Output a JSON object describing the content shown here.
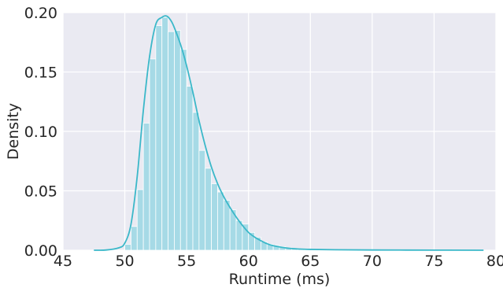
{
  "chart_data": {
    "type": "bar",
    "subtype": "histogram with KDE curve",
    "xlabel": "Runtime (ms)",
    "ylabel": "Density",
    "xlim": [
      45,
      80
    ],
    "ylim": [
      0,
      0.2
    ],
    "x_ticks": [
      "45",
      "50",
      "55",
      "60",
      "65",
      "70",
      "75",
      "80"
    ],
    "y_ticks": [
      "0.00",
      "0.05",
      "0.10",
      "0.15",
      "0.20"
    ],
    "grid": true,
    "style": "seaborn darkgrid",
    "colors": {
      "plot_background": "#EAEAF2",
      "grid": "#FFFFFF",
      "bars": "#A6DAE6",
      "kde_line": "#3BB8C9",
      "text": "#262626"
    },
    "histogram": {
      "bin_width": 0.5,
      "bins": [
        {
          "x0": 50.0,
          "value": 0.005
        },
        {
          "x0": 50.5,
          "value": 0.02
        },
        {
          "x0": 51.0,
          "value": 0.051
        },
        {
          "x0": 51.5,
          "value": 0.107
        },
        {
          "x0": 52.0,
          "value": 0.161
        },
        {
          "x0": 52.5,
          "value": 0.189
        },
        {
          "x0": 53.0,
          "value": 0.196
        },
        {
          "x0": 53.5,
          "value": 0.184
        },
        {
          "x0": 54.0,
          "value": 0.185
        },
        {
          "x0": 54.5,
          "value": 0.169
        },
        {
          "x0": 55.0,
          "value": 0.138
        },
        {
          "x0": 55.5,
          "value": 0.116
        },
        {
          "x0": 56.0,
          "value": 0.084
        },
        {
          "x0": 56.5,
          "value": 0.069
        },
        {
          "x0": 57.0,
          "value": 0.056
        },
        {
          "x0": 57.5,
          "value": 0.049
        },
        {
          "x0": 58.0,
          "value": 0.042
        },
        {
          "x0": 58.5,
          "value": 0.034
        },
        {
          "x0": 59.0,
          "value": 0.025
        },
        {
          "x0": 59.5,
          "value": 0.022
        },
        {
          "x0": 60.0,
          "value": 0.015
        },
        {
          "x0": 60.5,
          "value": 0.011
        },
        {
          "x0": 61.0,
          "value": 0.007
        },
        {
          "x0": 61.5,
          "value": 0.005
        },
        {
          "x0": 62.0,
          "value": 0.004
        },
        {
          "x0": 62.5,
          "value": 0.003
        },
        {
          "x0": 63.0,
          "value": 0.002
        },
        {
          "x0": 63.5,
          "value": 0.0015
        },
        {
          "x0": 64.0,
          "value": 0.001
        }
      ]
    },
    "kde": {
      "x": [
        47.5,
        48.5,
        49.5,
        50.0,
        50.5,
        51.0,
        51.5,
        52.0,
        52.5,
        53.0,
        53.4,
        53.8,
        54.2,
        54.6,
        55.0,
        55.5,
        56.0,
        56.5,
        57.0,
        57.5,
        58.0,
        58.5,
        59.0,
        59.5,
        60.0,
        60.5,
        61.0,
        61.5,
        62.0,
        63.0,
        64.0,
        65.0,
        67.0,
        70.0,
        75.0,
        79.0
      ],
      "y": [
        0.0,
        0.0002,
        0.002,
        0.006,
        0.022,
        0.062,
        0.118,
        0.163,
        0.19,
        0.196,
        0.197,
        0.192,
        0.182,
        0.17,
        0.155,
        0.133,
        0.109,
        0.088,
        0.07,
        0.056,
        0.045,
        0.036,
        0.028,
        0.021,
        0.015,
        0.011,
        0.008,
        0.0055,
        0.0038,
        0.002,
        0.0011,
        0.0007,
        0.0004,
        0.0002,
        0.0001,
        0.0
      ]
    }
  }
}
